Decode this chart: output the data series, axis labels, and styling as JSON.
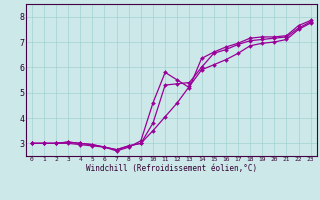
{
  "xlabel": "Windchill (Refroidissement éolien,°C)",
  "background_color": "#cce8e8",
  "line_color": "#990099",
  "x_ticks": [
    0,
    1,
    2,
    3,
    4,
    5,
    6,
    7,
    8,
    9,
    10,
    11,
    12,
    13,
    14,
    15,
    16,
    17,
    18,
    19,
    20,
    21,
    22,
    23
  ],
  "y_ticks": [
    3,
    4,
    5,
    6,
    7,
    8
  ],
  "xlim": [
    -0.5,
    23.5
  ],
  "ylim": [
    2.5,
    8.5
  ],
  "series": [
    [
      3.0,
      3.0,
      3.0,
      3.05,
      3.0,
      2.95,
      2.85,
      2.75,
      2.9,
      3.0,
      3.5,
      4.05,
      4.6,
      5.25,
      5.9,
      6.1,
      6.3,
      6.55,
      6.85,
      6.95,
      7.0,
      7.1,
      7.5,
      7.75
    ],
    [
      3.0,
      3.0,
      3.0,
      3.05,
      3.0,
      2.95,
      2.85,
      2.75,
      2.9,
      3.0,
      3.8,
      5.3,
      5.35,
      5.4,
      6.0,
      6.55,
      6.7,
      6.9,
      7.05,
      7.1,
      7.15,
      7.2,
      7.55,
      7.8
    ],
    [
      3.0,
      3.0,
      3.0,
      3.0,
      2.95,
      2.9,
      2.85,
      2.7,
      2.85,
      3.1,
      4.6,
      5.8,
      5.5,
      5.2,
      6.35,
      6.6,
      6.8,
      6.95,
      7.15,
      7.2,
      7.2,
      7.25,
      7.65,
      7.85
    ]
  ]
}
